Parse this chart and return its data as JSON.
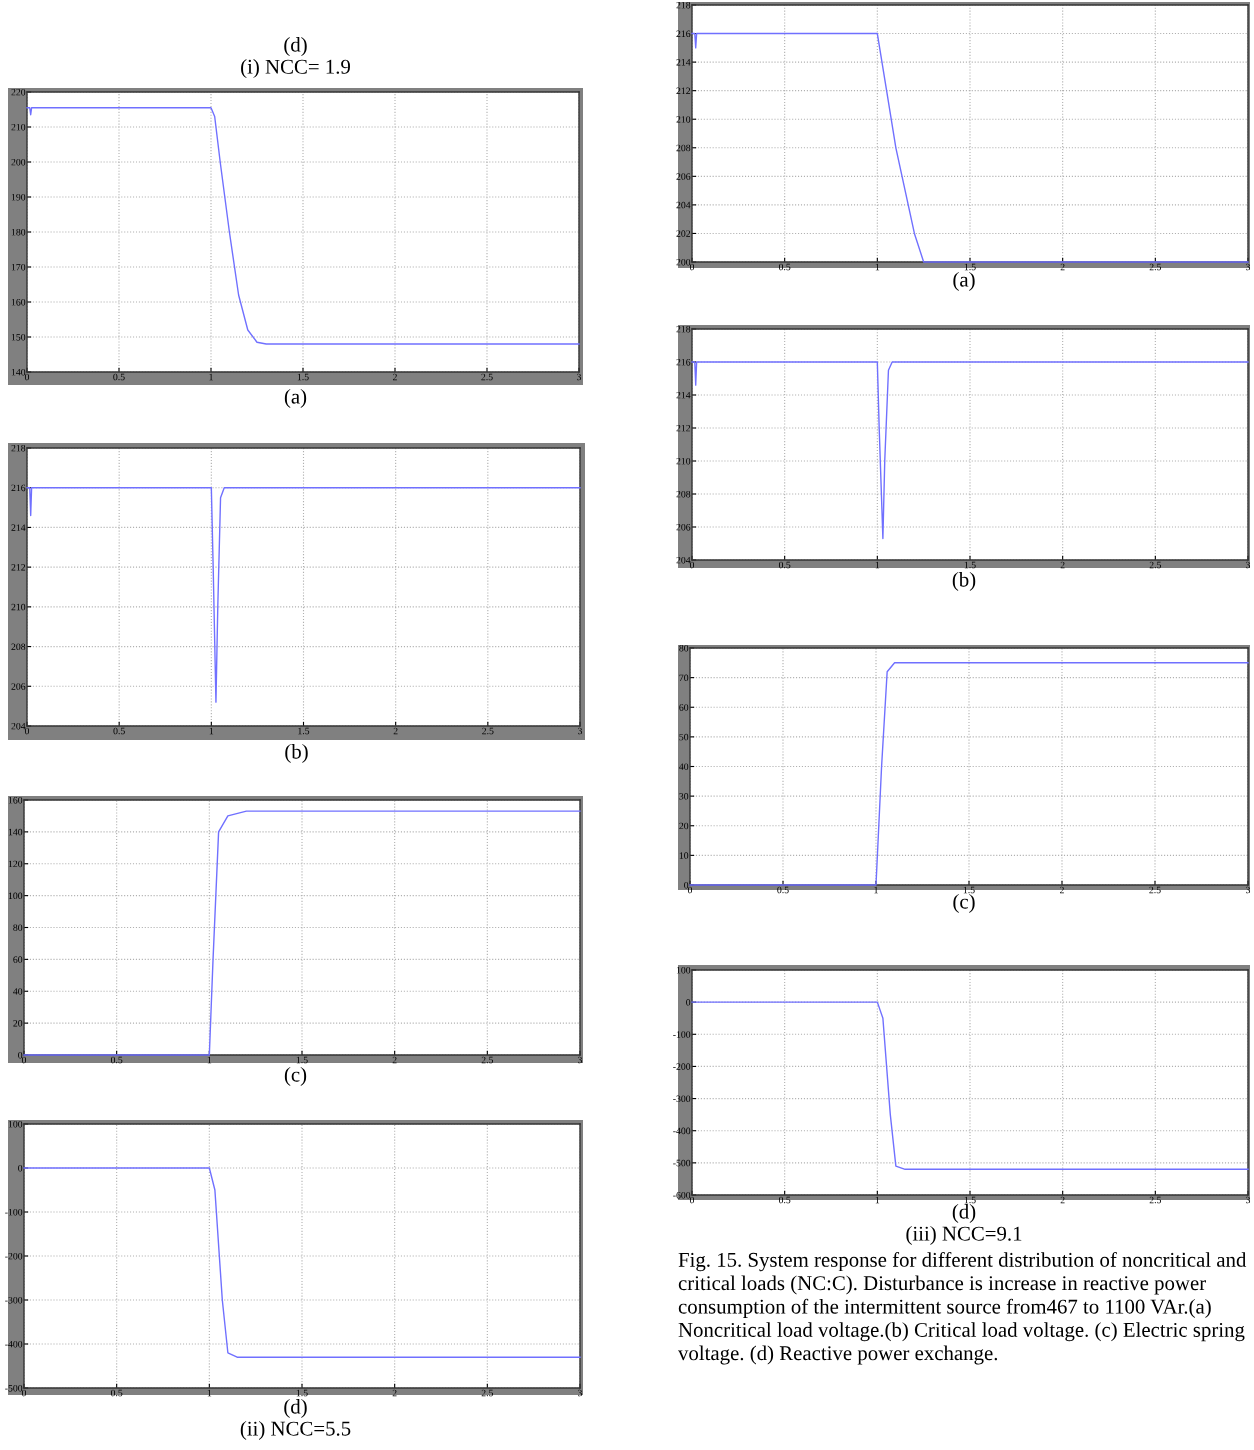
{
  "chart_data": [
    {
      "type": "line",
      "title": "(d)",
      "subtitle": "(i) NCC= 1.9",
      "xlabel": "(a)",
      "x": [
        0,
        0.015,
        0.02,
        0.025,
        1.0,
        1.02,
        1.05,
        1.1,
        1.15,
        1.2,
        1.25,
        1.3,
        3
      ],
      "series": [
        {
          "color": "#7070ff",
          "values": [
            215.5,
            215.5,
            213.5,
            215.5,
            215.5,
            213,
            200,
            180,
            162,
            152,
            148.5,
            148,
            148
          ]
        }
      ],
      "xlim": [
        0,
        3
      ],
      "xticks": [
        0,
        0.5,
        1,
        1.5,
        2,
        2.5,
        3
      ],
      "ylim": [
        140,
        220
      ],
      "yticks": [
        140,
        150,
        160,
        170,
        180,
        190,
        200,
        210,
        220
      ],
      "grid": true,
      "line_style": "solid"
    },
    {
      "type": "line",
      "xlabel": "(b)",
      "x": [
        0,
        0.015,
        0.02,
        0.025,
        1.0,
        1.01,
        1.025,
        1.035,
        1.05,
        1.07,
        3
      ],
      "series": [
        {
          "color": "#7070ff",
          "values": [
            216,
            216,
            214.6,
            216,
            216,
            212,
            205.2,
            210,
            215.5,
            216,
            216
          ]
        }
      ],
      "xlim": [
        0,
        3
      ],
      "xticks": [
        0,
        0.5,
        1,
        1.5,
        2,
        2.5,
        3
      ],
      "ylim": [
        204,
        218
      ],
      "yticks": [
        204,
        206,
        208,
        210,
        212,
        214,
        216,
        218
      ],
      "grid": true,
      "line_style": "solid"
    },
    {
      "type": "line",
      "xlabel": "(c)",
      "x": [
        0,
        1.0,
        1.02,
        1.05,
        1.1,
        1.2,
        3
      ],
      "series": [
        {
          "color": "#7070ff",
          "values": [
            0,
            0,
            60,
            140,
            150,
            153,
            153
          ]
        }
      ],
      "xlim": [
        0,
        3
      ],
      "xticks": [
        0,
        0.5,
        1,
        1.5,
        2,
        2.5,
        3
      ],
      "ylim": [
        0,
        160
      ],
      "yticks": [
        0,
        20,
        40,
        60,
        80,
        100,
        120,
        140,
        160
      ],
      "grid": true,
      "line_style": "solid"
    },
    {
      "type": "line",
      "xlabel": "(d)",
      "annotations": [
        "(ii) NCC=5.5"
      ],
      "x": [
        0,
        1.0,
        1.03,
        1.07,
        1.1,
        1.15,
        3
      ],
      "series": [
        {
          "color": "#7070ff",
          "values": [
            0,
            0,
            -50,
            -300,
            -420,
            -430,
            -430
          ]
        }
      ],
      "xlim": [
        0,
        3
      ],
      "xticks": [
        0,
        0.5,
        1,
        1.5,
        2,
        2.5,
        3
      ],
      "ylim": [
        -500,
        100
      ],
      "yticks": [
        -500,
        -400,
        -300,
        -200,
        -100,
        0,
        100
      ],
      "grid": true,
      "line_style": "solid"
    },
    {
      "type": "line",
      "xlabel": "(a)",
      "x": [
        0,
        0.015,
        0.02,
        0.025,
        1.0,
        1.05,
        1.1,
        1.2,
        1.25,
        3
      ],
      "series": [
        {
          "color": "#7070ff",
          "values": [
            216,
            216,
            215,
            216,
            216,
            212,
            208,
            202,
            200,
            200
          ]
        }
      ],
      "xlim": [
        0,
        3
      ],
      "xticks": [
        0,
        0.5,
        1,
        1.5,
        2,
        2.5,
        3
      ],
      "ylim": [
        200,
        218
      ],
      "yticks": [
        200,
        202,
        204,
        206,
        208,
        210,
        212,
        214,
        216,
        218
      ],
      "grid": true,
      "line_style": "solid"
    },
    {
      "type": "line",
      "xlabel": "(b)",
      "x": [
        0,
        0.015,
        0.02,
        0.025,
        1.0,
        1.01,
        1.03,
        1.04,
        1.06,
        1.08,
        3
      ],
      "series": [
        {
          "color": "#7070ff",
          "values": [
            216,
            216,
            214.6,
            216,
            216,
            212,
            205.3,
            210,
            215.5,
            216,
            216
          ]
        }
      ],
      "xlim": [
        0,
        3
      ],
      "xticks": [
        0,
        0.5,
        1,
        1.5,
        2,
        2.5,
        3
      ],
      "ylim": [
        204,
        218
      ],
      "yticks": [
        204,
        206,
        208,
        210,
        212,
        214,
        216,
        218
      ],
      "grid": true,
      "line_style": "solid"
    },
    {
      "type": "line",
      "xlabel": "(c)",
      "x": [
        0,
        1.0,
        1.03,
        1.06,
        1.1,
        3
      ],
      "series": [
        {
          "color": "#7070ff",
          "values": [
            0,
            0,
            40,
            72,
            75,
            75
          ]
        }
      ],
      "xlim": [
        0,
        3
      ],
      "xticks": [
        0,
        0.5,
        1,
        1.5,
        2,
        2.5,
        3
      ],
      "ylim": [
        0,
        80
      ],
      "yticks": [
        0,
        10,
        20,
        30,
        40,
        50,
        60,
        70,
        80
      ],
      "grid": true,
      "line_style": "solid"
    },
    {
      "type": "line",
      "xlabel": "(d)",
      "annotations": [
        "(iii) NCC=9.1",
        "Fig. 15. System response for different distribution of noncritical and critical loads (NC:C). Disturbance is increase in reactive power consumption of the intermittent source from467 to 1100 VAr.(a) Noncritical load voltage.(b) Critical load voltage. (c) Electric spring voltage. (d) Reactive power exchange."
      ],
      "x": [
        0,
        1.0,
        1.03,
        1.07,
        1.1,
        1.15,
        3
      ],
      "series": [
        {
          "color": "#7070ff",
          "values": [
            0,
            0,
            -50,
            -350,
            -510,
            -520,
            -520
          ]
        }
      ],
      "xlim": [
        0,
        3
      ],
      "xticks": [
        0,
        0.5,
        1,
        1.5,
        2,
        2.5,
        3
      ],
      "ylim": [
        -600,
        100
      ],
      "yticks": [
        -600,
        -500,
        -400,
        -300,
        -200,
        -100,
        0,
        100
      ],
      "grid": true,
      "line_style": "solid"
    }
  ]
}
